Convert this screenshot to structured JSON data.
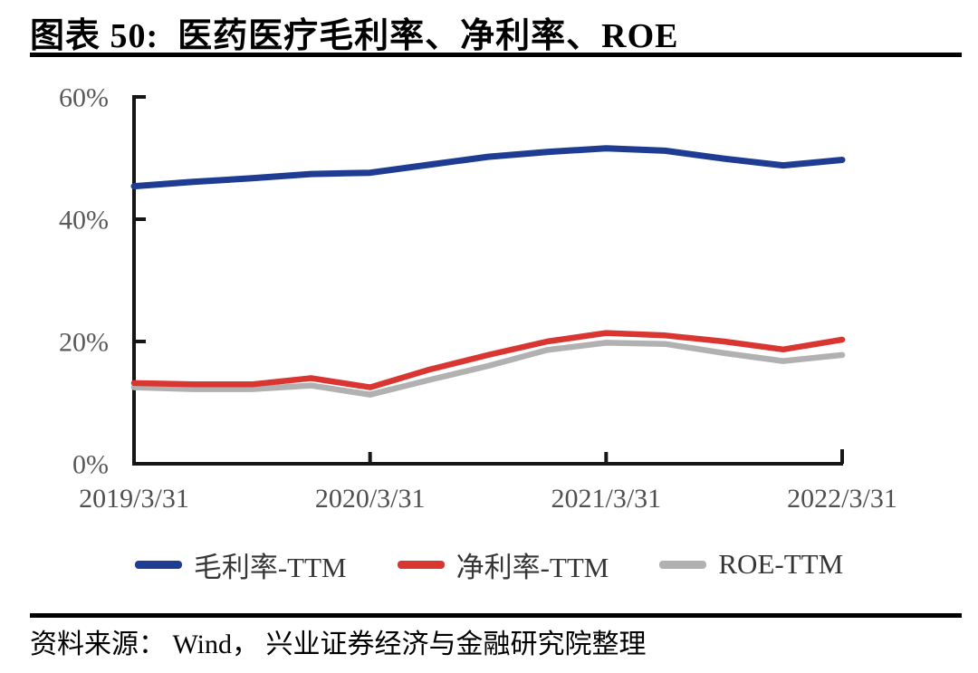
{
  "header": {
    "title": "图表 50:  医药医疗毛利率、净利率、ROE"
  },
  "chart_data": {
    "type": "line",
    "title": "医药医疗毛利率、净利率、ROE",
    "x": [
      "2019/3/31",
      "2019/6/30",
      "2019/9/30",
      "2019/12/31",
      "2020/3/31",
      "2020/6/30",
      "2020/9/30",
      "2020/12/31",
      "2021/3/31",
      "2021/6/30",
      "2021/9/30",
      "2021/12/31",
      "2022/3/31"
    ],
    "x_tick_labels": [
      "2019/3/31",
      "2020/3/31",
      "2021/3/31",
      "2022/3/31"
    ],
    "x_tick_indices": [
      0,
      4,
      8,
      12
    ],
    "series": [
      {
        "id": "gross-margin-ttm",
        "name": "毛利率-TTM",
        "color": "#1f3c93",
        "stroke_width": 7,
        "values": [
          45.4,
          46.1,
          46.7,
          47.4,
          47.6,
          48.9,
          50.2,
          51.0,
          51.6,
          51.2,
          49.9,
          48.8,
          49.7
        ]
      },
      {
        "id": "net-margin-ttm",
        "name": "净利率-TTM",
        "color": "#d93531",
        "stroke_width": 6.5,
        "values": [
          13.2,
          13.0,
          13.0,
          14.0,
          12.5,
          15.4,
          17.8,
          20.0,
          21.4,
          21.0,
          20.0,
          18.7,
          20.3
        ]
      },
      {
        "id": "roe-ttm",
        "name": "ROE-TTM",
        "color": "#b1b1b1",
        "stroke_width": 6.5,
        "values": [
          12.5,
          12.2,
          12.2,
          12.8,
          11.3,
          13.7,
          16.0,
          18.6,
          19.8,
          19.6,
          18.1,
          16.8,
          17.8
        ]
      }
    ],
    "ylim": [
      0,
      60
    ],
    "yticks": [
      0,
      20,
      40,
      60
    ],
    "ytick_suffix": "%",
    "grid": false,
    "legend_position": "bottom"
  },
  "footer": {
    "source": "资料来源： Wind， 兴业证券经济与金融研究院整理"
  },
  "colors": {
    "axis": "#161616",
    "ytick_label": "#595959",
    "xtick_label": "#4f4f4f",
    "rule": "#000000"
  }
}
